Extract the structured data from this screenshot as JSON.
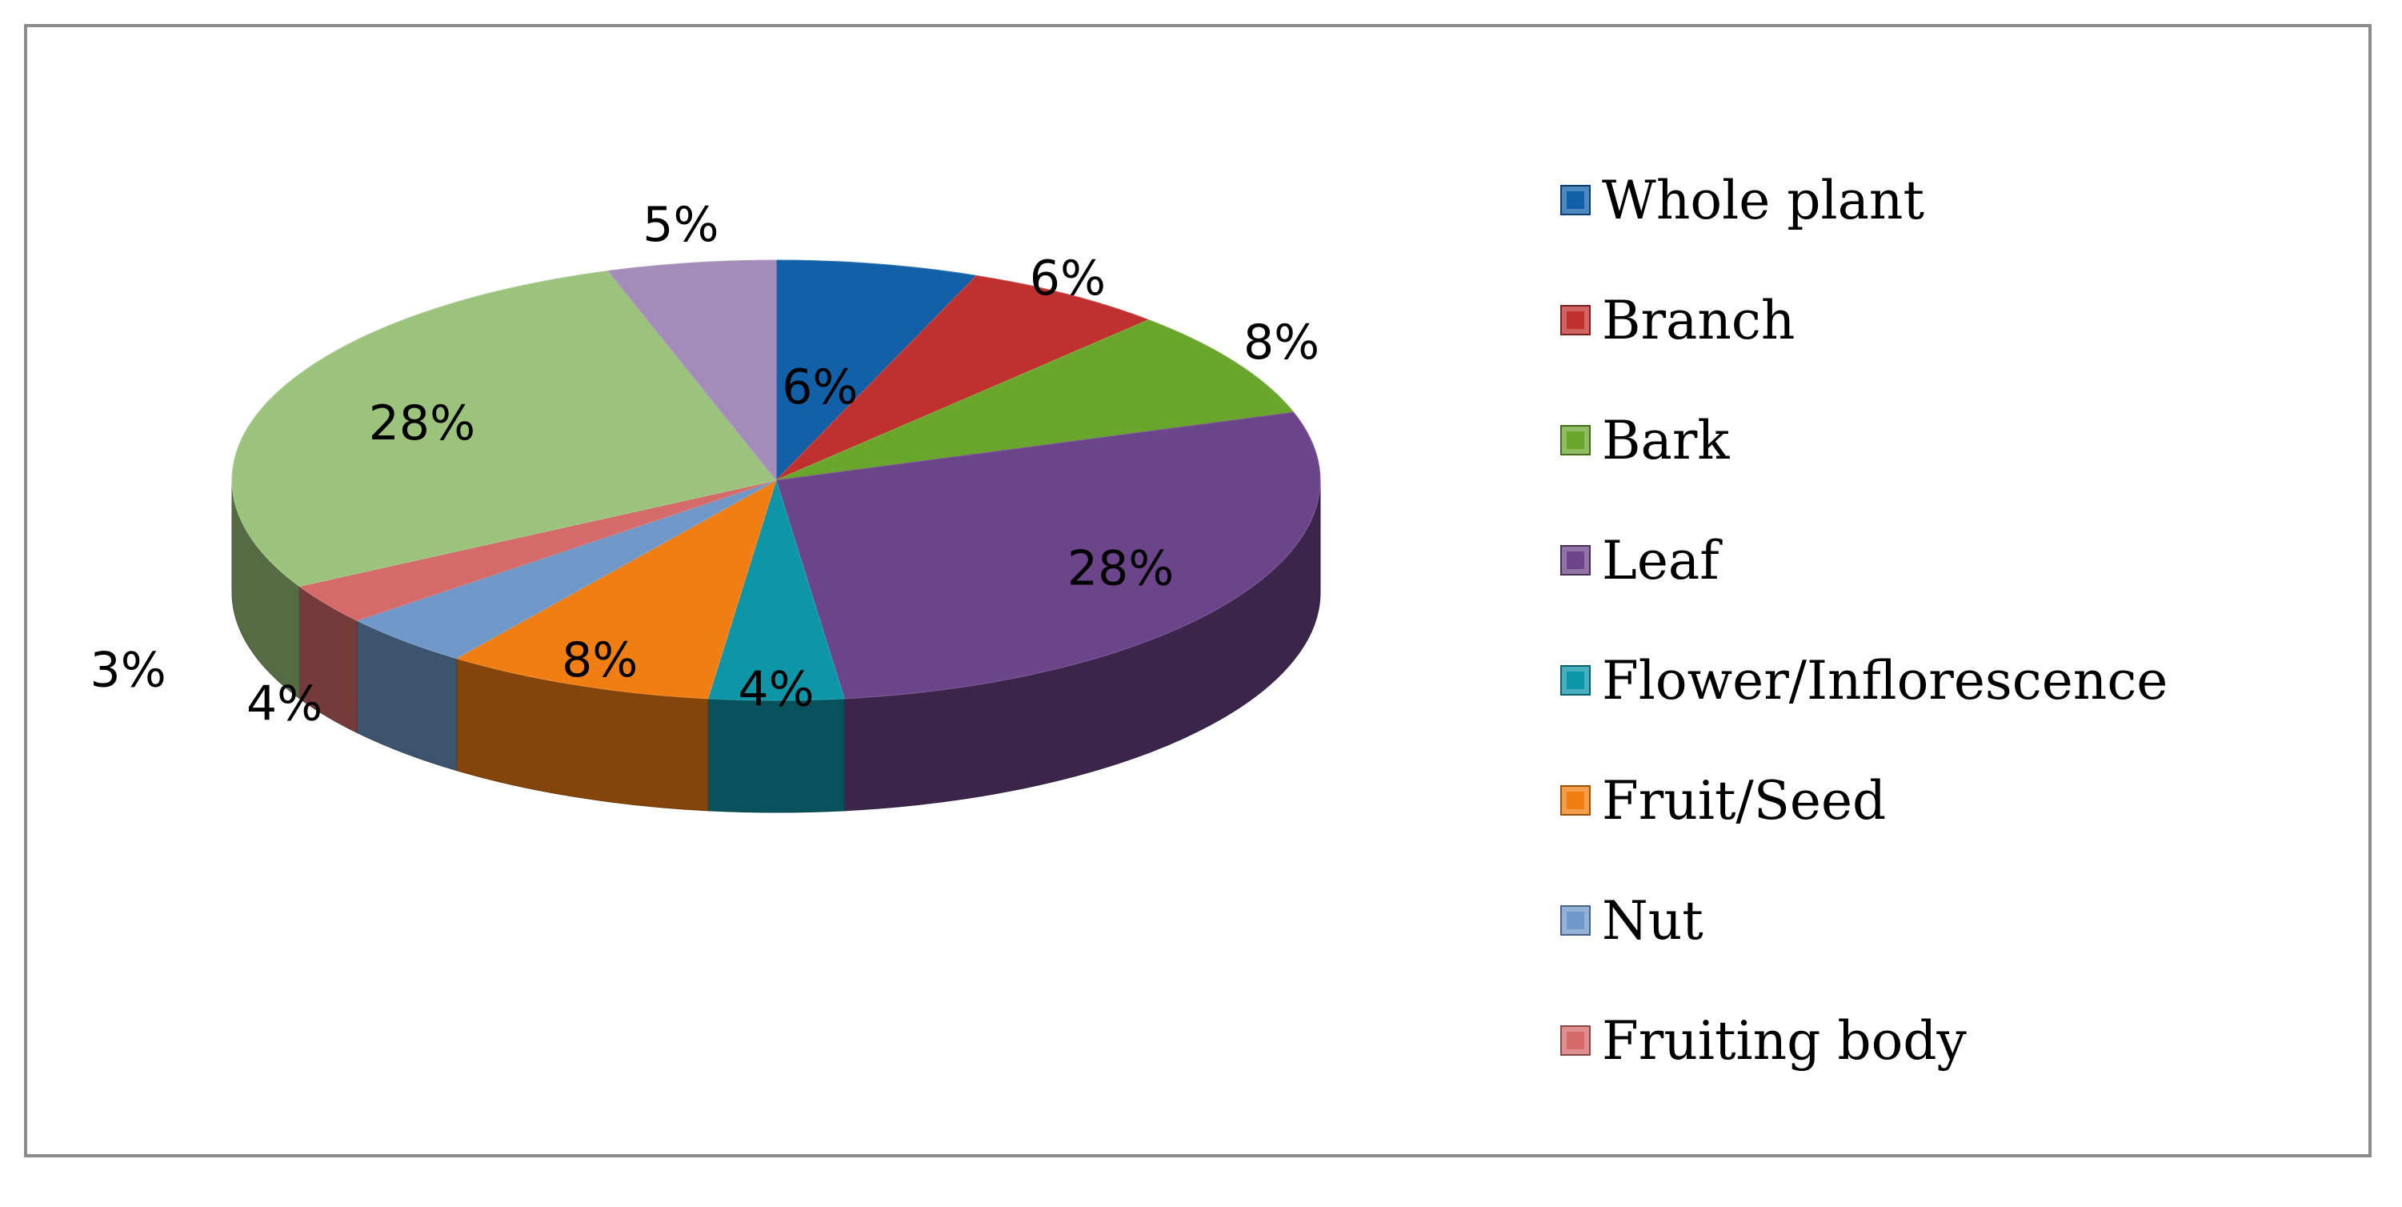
{
  "chart_data": {
    "type": "pie",
    "style": "3d",
    "legend_position": "right",
    "slices": [
      {
        "label": "Whole plant",
        "value": 6,
        "display": "6%",
        "color": "#1260a8"
      },
      {
        "label": "Branch",
        "value": 6,
        "display": "6%",
        "color": "#c0302e"
      },
      {
        "label": "Bark",
        "value": 8,
        "display": "8%",
        "color": "#6aa52c"
      },
      {
        "label": "Leaf",
        "value": 28,
        "display": "28%",
        "color": "#6c4489"
      },
      {
        "label": "Flower/Inflorescence",
        "value": 4,
        "display": "4%",
        "color": "#0d95a8"
      },
      {
        "label": "Fruit/Seed",
        "value": 8,
        "display": "8%",
        "color": "#f07e12"
      },
      {
        "label": "Nut",
        "value": 4,
        "display": "4%",
        "color": "#6f98c8"
      },
      {
        "label": "Fruiting body",
        "value": 3,
        "display": "3%",
        "color": "#d46a6a"
      },
      {
        "label": "",
        "value": 28,
        "display": "28%",
        "color": "#9bc37c"
      },
      {
        "label": "",
        "value": 5,
        "display": "5%",
        "color": "#a48cba"
      }
    ]
  }
}
